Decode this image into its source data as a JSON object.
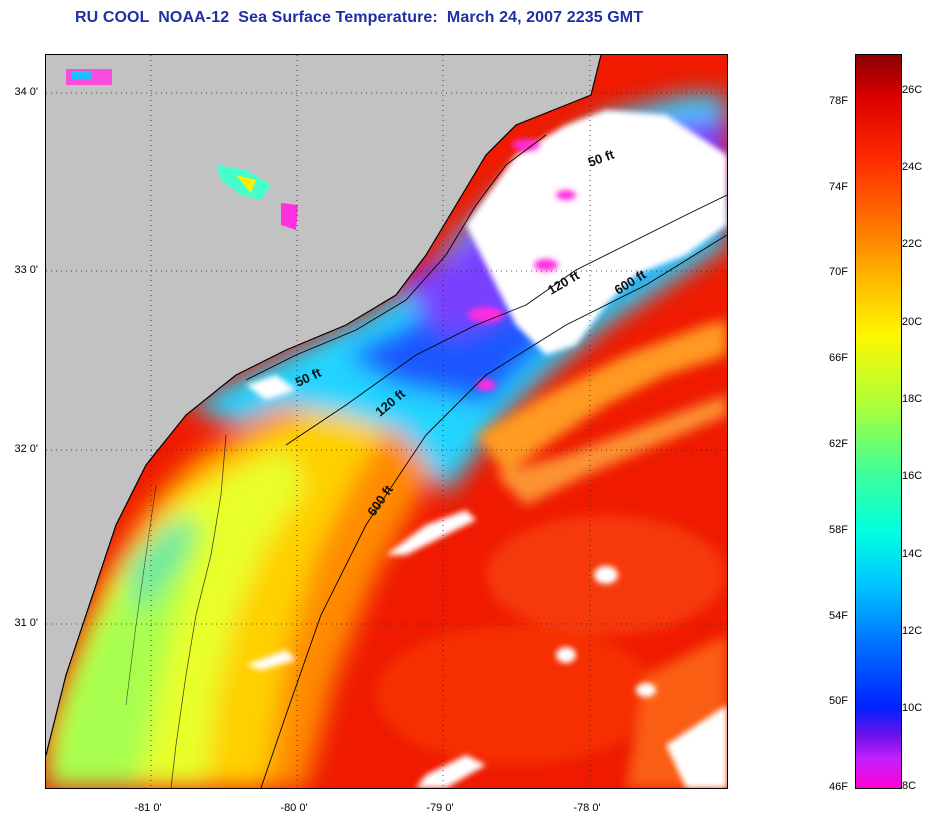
{
  "title": "RU COOL  NOAA-12  Sea Surface Temperature:  March 24, 2007 2235 GMT",
  "map": {
    "lat_ticks": [
      "34 0'",
      "33 0'",
      "32 0'",
      "31 0'"
    ],
    "lon_ticks": [
      "-81 0'",
      "-80 0'",
      "-79 0'",
      "-78 0'"
    ],
    "contours": [
      {
        "label": "50 ft"
      },
      {
        "label": "120 ft"
      },
      {
        "label": "600 ft"
      }
    ],
    "contour_labels": [
      "50 ft",
      "50 ft",
      "120 ft",
      "120 ft",
      "600 ft",
      "600 ft"
    ],
    "colors": {
      "land": "#c2c2c2",
      "cloud": "#ffffff",
      "coastline": "#000000"
    }
  },
  "colorbar": {
    "fahrenheit_labels": [
      "78F",
      "74F",
      "70F",
      "66F",
      "62F",
      "58F",
      "54F",
      "50F",
      "46F"
    ],
    "celsius_labels": [
      "26C",
      "24C",
      "22C",
      "20C",
      "18C",
      "16C",
      "14C",
      "12C",
      "10C",
      "8C"
    ],
    "range_celsius": [
      8,
      27
    ]
  }
}
